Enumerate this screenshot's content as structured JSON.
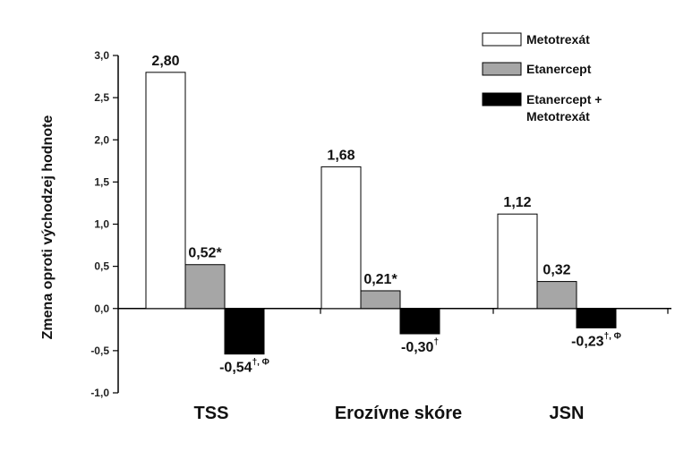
{
  "chart_data": {
    "type": "bar",
    "categories": [
      "TSS",
      "Erozívne skóre",
      "JSN"
    ],
    "ylabel": "Zmena oproti východzej hodnote",
    "ylim": [
      -1.0,
      3.0
    ],
    "yticks": [
      "3,0",
      "2,5",
      "2,0",
      "1,5",
      "1,0",
      "0,5",
      "0,0",
      "-0,5",
      "-1,0"
    ],
    "series": [
      {
        "name": "Metotrexát",
        "color": "#ffffff",
        "values": [
          2.8,
          1.68,
          1.12
        ],
        "labels": [
          {
            "t": "2,80",
            "s": ""
          },
          {
            "t": "1,68",
            "s": ""
          },
          {
            "t": "1,12",
            "s": ""
          }
        ]
      },
      {
        "name": "Etanercept",
        "color": "#a6a6a6",
        "values": [
          0.52,
          0.21,
          0.32
        ],
        "labels": [
          {
            "t": "0,52*",
            "s": ""
          },
          {
            "t": "0,21*",
            "s": ""
          },
          {
            "t": "0,32",
            "s": ""
          }
        ]
      },
      {
        "name": "Etanercept + Metotrexát",
        "color": "#000000",
        "values": [
          -0.54,
          -0.3,
          -0.23
        ],
        "labels": [
          {
            "t": "-0,54",
            "s": "†, Φ"
          },
          {
            "t": "-0,30",
            "s": "†"
          },
          {
            "t": "-0,23",
            "s": "†, Φ"
          }
        ]
      }
    ],
    "legend": {
      "position": "top-right",
      "entries": [
        {
          "lines": [
            "Metotrexát"
          ]
        },
        {
          "lines": [
            "Etanercept"
          ]
        },
        {
          "lines": [
            "Etanercept +",
            "Metotrexát"
          ]
        }
      ]
    }
  }
}
